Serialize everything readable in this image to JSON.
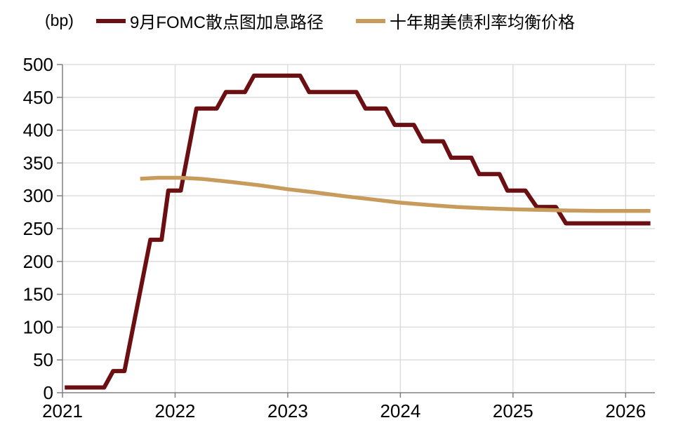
{
  "chart_data": {
    "type": "line",
    "title": "",
    "unit_label": "(bp)",
    "xlabel": "",
    "ylabel": "(bp)",
    "xlim": [
      2021,
      2026.26
    ],
    "ylim": [
      0,
      500
    ],
    "x_ticks": [
      2021,
      2022,
      2023,
      2024,
      2025,
      2026
    ],
    "y_ticks": [
      0,
      50,
      100,
      150,
      200,
      250,
      300,
      350,
      400,
      450,
      500
    ],
    "grid": true,
    "legend_position": "top",
    "colors": {
      "grid": "#D9D9D9",
      "axis": "#808080",
      "text": "#000000",
      "background": "#FFFFFF"
    },
    "series": [
      {
        "name": "9月FOMC散点图加息路径",
        "color": "#6C0F12",
        "width": 6,
        "points": [
          [
            2021.02,
            8
          ],
          [
            2021.37,
            8
          ],
          [
            2021.45,
            33
          ],
          [
            2021.55,
            33
          ],
          [
            2021.78,
            233
          ],
          [
            2021.88,
            233
          ],
          [
            2021.94,
            308
          ],
          [
            2022.05,
            308
          ],
          [
            2022.19,
            433
          ],
          [
            2022.37,
            433
          ],
          [
            2022.45,
            458
          ],
          [
            2022.62,
            458
          ],
          [
            2022.7,
            483
          ],
          [
            2023.11,
            483
          ],
          [
            2023.19,
            458
          ],
          [
            2023.61,
            458
          ],
          [
            2023.69,
            433
          ],
          [
            2023.87,
            433
          ],
          [
            2023.95,
            408
          ],
          [
            2024.12,
            408
          ],
          [
            2024.2,
            383
          ],
          [
            2024.38,
            383
          ],
          [
            2024.45,
            358
          ],
          [
            2024.63,
            358
          ],
          [
            2024.7,
            333
          ],
          [
            2024.88,
            333
          ],
          [
            2024.95,
            308
          ],
          [
            2025.11,
            308
          ],
          [
            2025.21,
            283
          ],
          [
            2025.38,
            283
          ],
          [
            2025.47,
            258
          ],
          [
            2026.22,
            258
          ]
        ]
      },
      {
        "name": "十年期美债利率均衡价格",
        "color": "#C69B5B",
        "width": 5.5,
        "points": [
          [
            2021.69,
            326
          ],
          [
            2021.85,
            327.5
          ],
          [
            2022.05,
            327.5
          ],
          [
            2022.25,
            325.5
          ],
          [
            2022.5,
            321
          ],
          [
            2022.75,
            316
          ],
          [
            2023.0,
            310
          ],
          [
            2023.25,
            305
          ],
          [
            2023.5,
            299.5
          ],
          [
            2023.75,
            294.5
          ],
          [
            2024.0,
            289.5
          ],
          [
            2024.25,
            286
          ],
          [
            2024.5,
            283
          ],
          [
            2024.75,
            281
          ],
          [
            2025.0,
            279.5
          ],
          [
            2025.25,
            278.5
          ],
          [
            2025.5,
            277.5
          ],
          [
            2025.75,
            277
          ],
          [
            2026.0,
            277
          ],
          [
            2026.22,
            277
          ]
        ]
      }
    ]
  }
}
